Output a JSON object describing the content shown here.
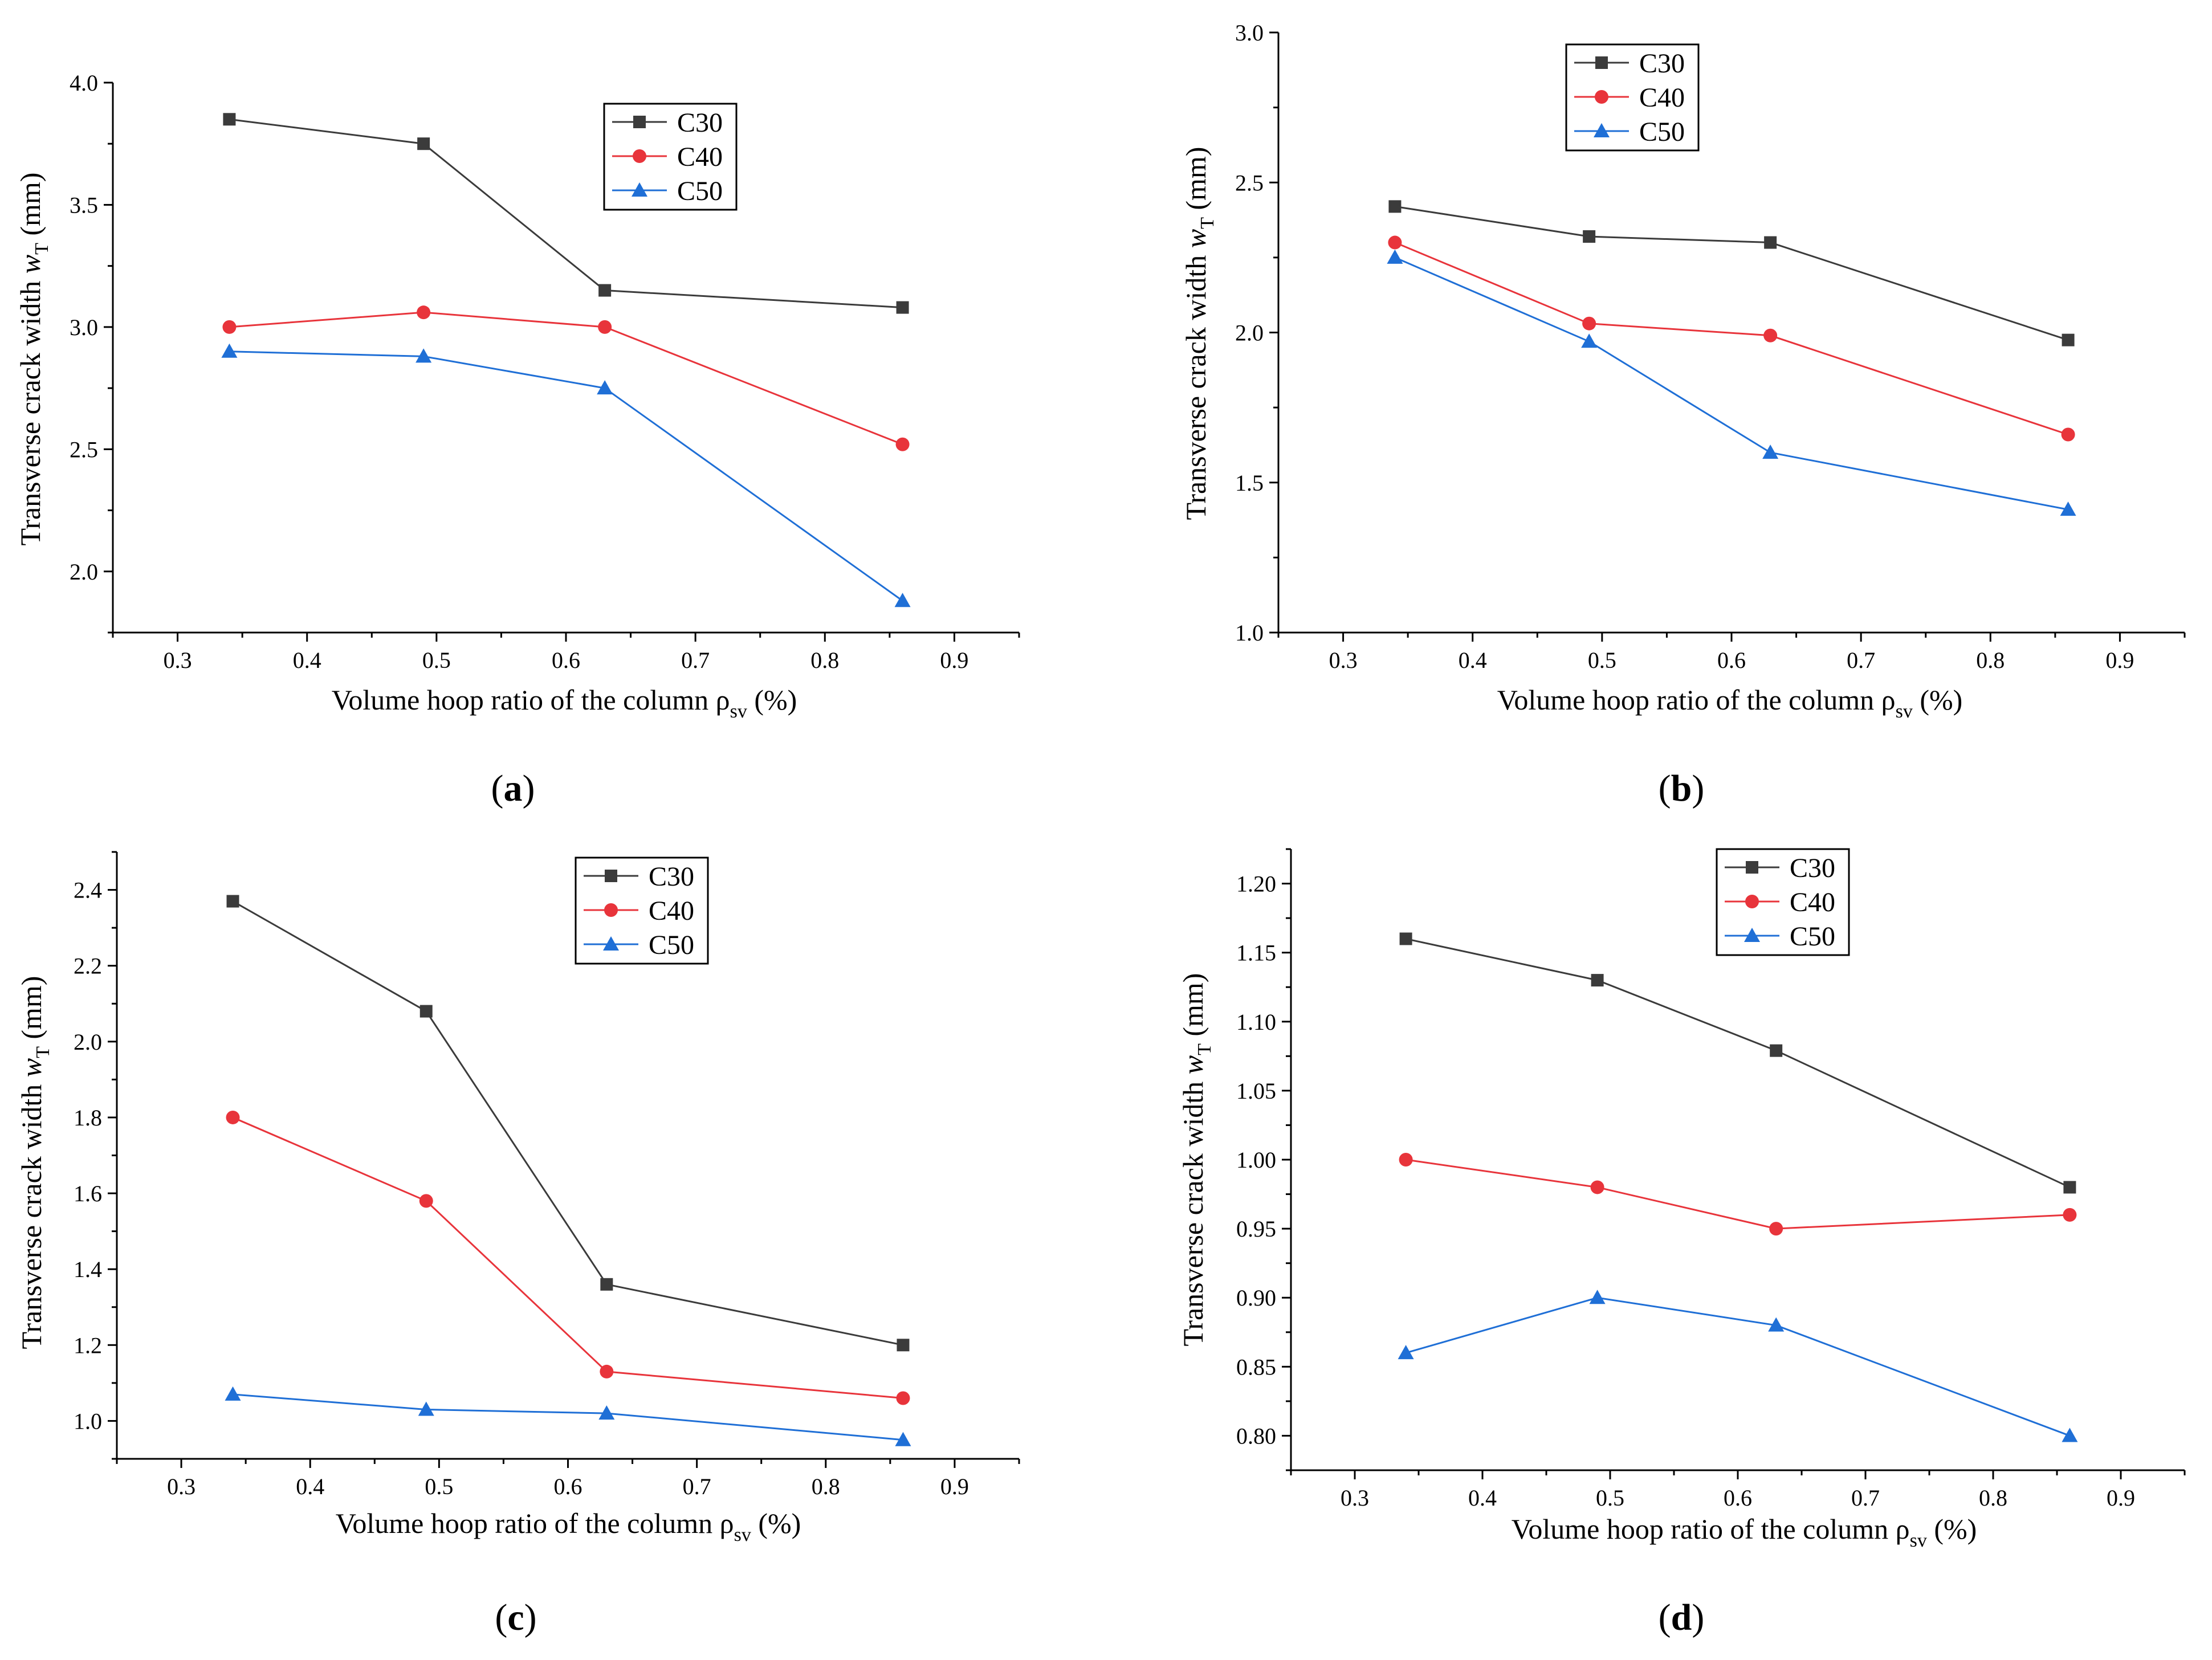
{
  "colors": {
    "C30": "#3b3b3b",
    "C40": "#e8343b",
    "C50": "#1f6fd6"
  },
  "chart_data": [
    {
      "type": "line",
      "panel_label": "a",
      "xlabel": "Volume hoop ratio of the column ρ_sv (%)",
      "ylabel": "Transverse crack width w_T (mm)",
      "xlim": [
        0.25,
        0.95
      ],
      "ylim": [
        1.75,
        4.0
      ],
      "xticks": [
        "0.3",
        "0.4",
        "0.5",
        "0.6",
        "0.7",
        "0.8",
        "0.9"
      ],
      "yticks": [
        "2.0",
        "2.5",
        "3.0",
        "3.5",
        "4.0"
      ],
      "legend_position": "top-right",
      "x": [
        0.34,
        0.49,
        0.63,
        0.86
      ],
      "series": [
        {
          "name": "C30",
          "marker": "square",
          "values": [
            3.85,
            3.75,
            3.15,
            3.08
          ]
        },
        {
          "name": "C40",
          "marker": "circle",
          "values": [
            3.0,
            3.06,
            3.0,
            2.52
          ]
        },
        {
          "name": "C50",
          "marker": "triangle",
          "values": [
            2.9,
            2.88,
            2.75,
            1.88
          ]
        }
      ]
    },
    {
      "type": "line",
      "panel_label": "b",
      "xlabel": "Volume hoop ratio of the column ρ_sv (%)",
      "ylabel": "Transverse crack width w_T (mm)",
      "xlim": [
        0.25,
        0.95
      ],
      "ylim": [
        1.0,
        3.0
      ],
      "xticks": [
        "0.3",
        "0.4",
        "0.5",
        "0.6",
        "0.7",
        "0.8",
        "0.9"
      ],
      "yticks": [
        "1.0",
        "1.5",
        "2.0",
        "2.5",
        "3.0"
      ],
      "legend_position": "top-center",
      "x": [
        0.34,
        0.49,
        0.63,
        0.86
      ],
      "series": [
        {
          "name": "C30",
          "marker": "square",
          "values": [
            2.42,
            2.32,
            2.3,
            1.975
          ]
        },
        {
          "name": "C40",
          "marker": "circle",
          "values": [
            2.3,
            2.03,
            1.99,
            1.66
          ]
        },
        {
          "name": "C50",
          "marker": "triangle",
          "values": [
            2.25,
            1.97,
            1.6,
            1.41
          ]
        }
      ]
    },
    {
      "type": "line",
      "panel_label": "c",
      "xlabel": "Volume hoop ratio of the column ρ_sv (%)",
      "ylabel": "Transverse crack width w_T (mm)",
      "xlim": [
        0.25,
        0.95
      ],
      "ylim": [
        0.9,
        2.5
      ],
      "xticks": [
        "0.3",
        "0.4",
        "0.5",
        "0.6",
        "0.7",
        "0.8",
        "0.9"
      ],
      "yticks": [
        "1.0",
        "1.2",
        "1.4",
        "1.6",
        "1.8",
        "2.0",
        "2.2",
        "2.4"
      ],
      "legend_position": "top-right",
      "x": [
        0.34,
        0.49,
        0.63,
        0.86
      ],
      "series": [
        {
          "name": "C30",
          "marker": "square",
          "values": [
            2.37,
            2.08,
            1.36,
            1.2
          ]
        },
        {
          "name": "C40",
          "marker": "circle",
          "values": [
            1.8,
            1.58,
            1.13,
            1.06
          ]
        },
        {
          "name": "C50",
          "marker": "triangle",
          "values": [
            1.07,
            1.03,
            1.02,
            0.95
          ]
        }
      ]
    },
    {
      "type": "line",
      "panel_label": "d",
      "xlabel": "Volume hoop ratio of the column ρ_sv (%)",
      "ylabel": "Transverse crack width w_T (mm)",
      "xlim": [
        0.25,
        0.95
      ],
      "ylim": [
        0.775,
        1.225
      ],
      "xticks": [
        "0.3",
        "0.4",
        "0.5",
        "0.6",
        "0.7",
        "0.8",
        "0.9"
      ],
      "yticks": [
        "0.80",
        "0.85",
        "0.90",
        "0.95",
        "1.00",
        "1.05",
        "1.10",
        "1.15",
        "1.20"
      ],
      "legend_position": "top-center",
      "x": [
        0.34,
        0.49,
        0.63,
        0.86
      ],
      "series": [
        {
          "name": "C30",
          "marker": "square",
          "values": [
            1.16,
            1.13,
            1.079,
            0.98
          ]
        },
        {
          "name": "C40",
          "marker": "circle",
          "values": [
            1.0,
            0.98,
            0.95,
            0.96
          ]
        },
        {
          "name": "C50",
          "marker": "triangle",
          "values": [
            0.86,
            0.9,
            0.88,
            0.8
          ]
        }
      ]
    }
  ]
}
